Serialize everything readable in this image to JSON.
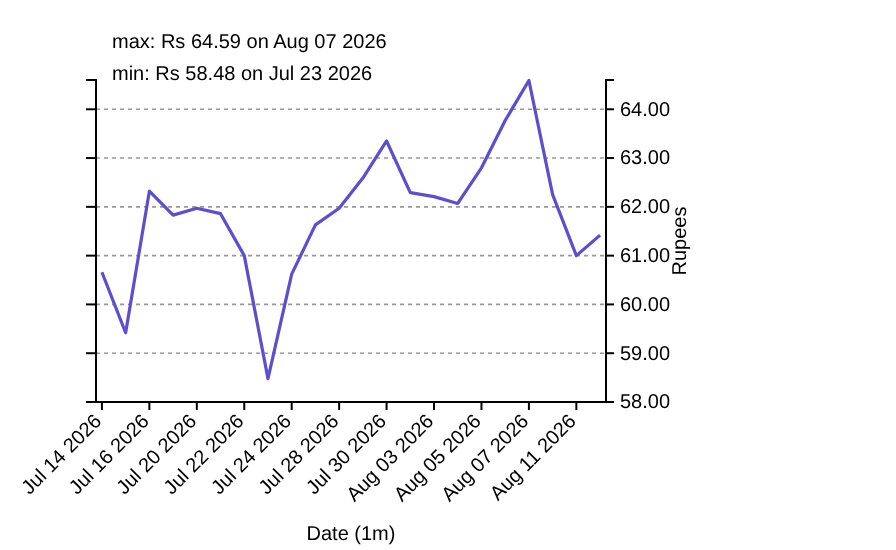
{
  "chart_data": {
    "type": "line",
    "title": "max: Rs 64.59 on Aug 07 2026",
    "subtitle": "min: Rs 58.48 on Jul 23 2026",
    "xlabel": "Date (1m)",
    "ylabel": "Rupees",
    "categories": [
      "Jul 14 2026",
      null,
      "Jul 16 2026",
      null,
      "Jul 20 2026",
      null,
      "Jul 22 2026",
      null,
      "Jul 24 2026",
      null,
      "Jul 28 2026",
      null,
      "Jul 30 2026",
      null,
      "Aug 03 2026",
      null,
      "Aug 05 2026",
      null,
      "Aug 07 2026",
      null,
      "Aug 11 2026",
      null
    ],
    "series": [
      {
        "color": "#5b4fcf",
        "values": [
          60.66,
          59.42,
          62.32,
          61.83,
          61.97,
          61.86,
          61.0,
          58.48,
          60.62,
          61.63,
          61.97,
          62.59,
          63.35,
          62.29,
          62.21,
          62.07,
          62.8,
          63.77,
          64.59,
          62.25,
          61.0,
          61.42
        ]
      }
    ],
    "ylim": [
      58,
      64.6
    ],
    "yticks": [
      {
        "value": 58,
        "label": "58.00"
      },
      {
        "value": 59,
        "label": "59.00"
      },
      {
        "value": 60,
        "label": "60.00"
      },
      {
        "value": 61,
        "label": "61.00"
      },
      {
        "value": 62,
        "label": "62.00"
      },
      {
        "value": 63,
        "label": "63.00"
      },
      {
        "value": 64,
        "label": "64.00"
      }
    ],
    "grid": "y",
    "marker": "none",
    "line_style": "solid"
  }
}
